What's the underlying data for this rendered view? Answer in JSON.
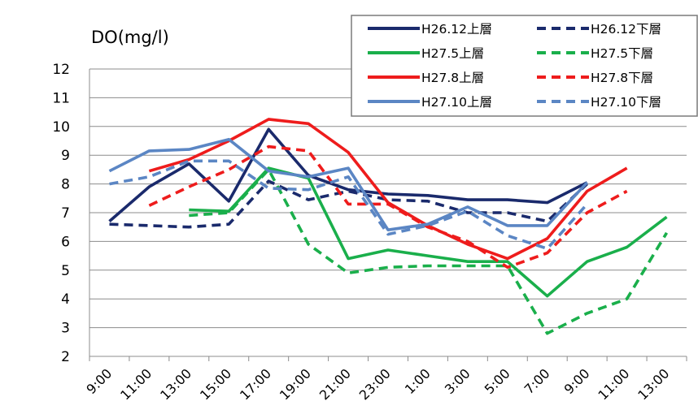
{
  "chart_data": {
    "type": "line",
    "title": "DO(mg/l)",
    "xlabel": "",
    "ylabel": "",
    "ylim": [
      2,
      12
    ],
    "yticks": [
      "2",
      "3",
      "4",
      "5",
      "6",
      "7",
      "8",
      "9",
      "10",
      "11",
      "12"
    ],
    "categories": [
      "9:00",
      "11:00",
      "13:00",
      "15:00",
      "17:00",
      "19:00",
      "21:00",
      "23:00",
      "1:00",
      "3:00",
      "5:00",
      "7:00",
      "9:00",
      "11:00",
      "13:00"
    ],
    "grid": "horizontal",
    "legend_position": "top-right",
    "series": [
      {
        "name": "H26.12上層",
        "color": "#1a2a6c",
        "dash": "solid",
        "values": [
          6.7,
          7.9,
          8.7,
          7.4,
          9.9,
          8.3,
          7.8,
          7.65,
          7.6,
          7.45,
          7.45,
          7.35,
          8.05,
          null,
          null
        ]
      },
      {
        "name": "H26.12下層",
        "color": "#1a2a6c",
        "dash": "dashed",
        "values": [
          6.6,
          6.55,
          6.5,
          6.6,
          8.1,
          7.45,
          7.75,
          7.45,
          7.4,
          7.0,
          7.0,
          6.7,
          8.0,
          null,
          null
        ]
      },
      {
        "name": "H27.5上層",
        "color": "#1aaf4b",
        "dash": "solid",
        "values": [
          null,
          null,
          7.1,
          7.05,
          8.55,
          8.2,
          5.4,
          5.7,
          5.5,
          5.3,
          5.3,
          4.1,
          5.3,
          5.8,
          6.85
        ]
      },
      {
        "name": "H27.5下層",
        "color": "#1aaf4b",
        "dash": "dashed",
        "values": [
          null,
          null,
          6.9,
          7.0,
          8.5,
          5.9,
          4.9,
          5.1,
          5.15,
          5.15,
          5.15,
          2.8,
          3.5,
          4.0,
          6.3
        ]
      },
      {
        "name": "H27.8上層",
        "color": "#ee1c1c",
        "dash": "solid",
        "values": [
          null,
          8.45,
          8.85,
          9.5,
          10.25,
          10.1,
          9.1,
          7.35,
          6.55,
          5.9,
          5.4,
          6.1,
          7.75,
          8.55,
          null
        ]
      },
      {
        "name": "H27.8下層",
        "color": "#ee1c1c",
        "dash": "dashed",
        "values": [
          null,
          7.25,
          7.9,
          8.5,
          9.3,
          9.15,
          7.3,
          7.3,
          6.5,
          6.0,
          5.1,
          5.6,
          7.0,
          7.75,
          null
        ]
      },
      {
        "name": "H27.10上層",
        "color": "#5b86c4",
        "dash": "solid",
        "values": [
          8.45,
          9.15,
          9.2,
          9.55,
          8.45,
          8.25,
          8.55,
          6.4,
          6.6,
          7.2,
          6.55,
          6.55,
          8.05,
          null,
          null
        ]
      },
      {
        "name": "H27.10下層",
        "color": "#5b86c4",
        "dash": "dashed",
        "values": [
          8.0,
          8.25,
          8.8,
          8.8,
          7.85,
          7.8,
          8.25,
          6.25,
          6.55,
          7.05,
          6.2,
          5.75,
          7.3,
          null,
          null
        ]
      }
    ]
  }
}
